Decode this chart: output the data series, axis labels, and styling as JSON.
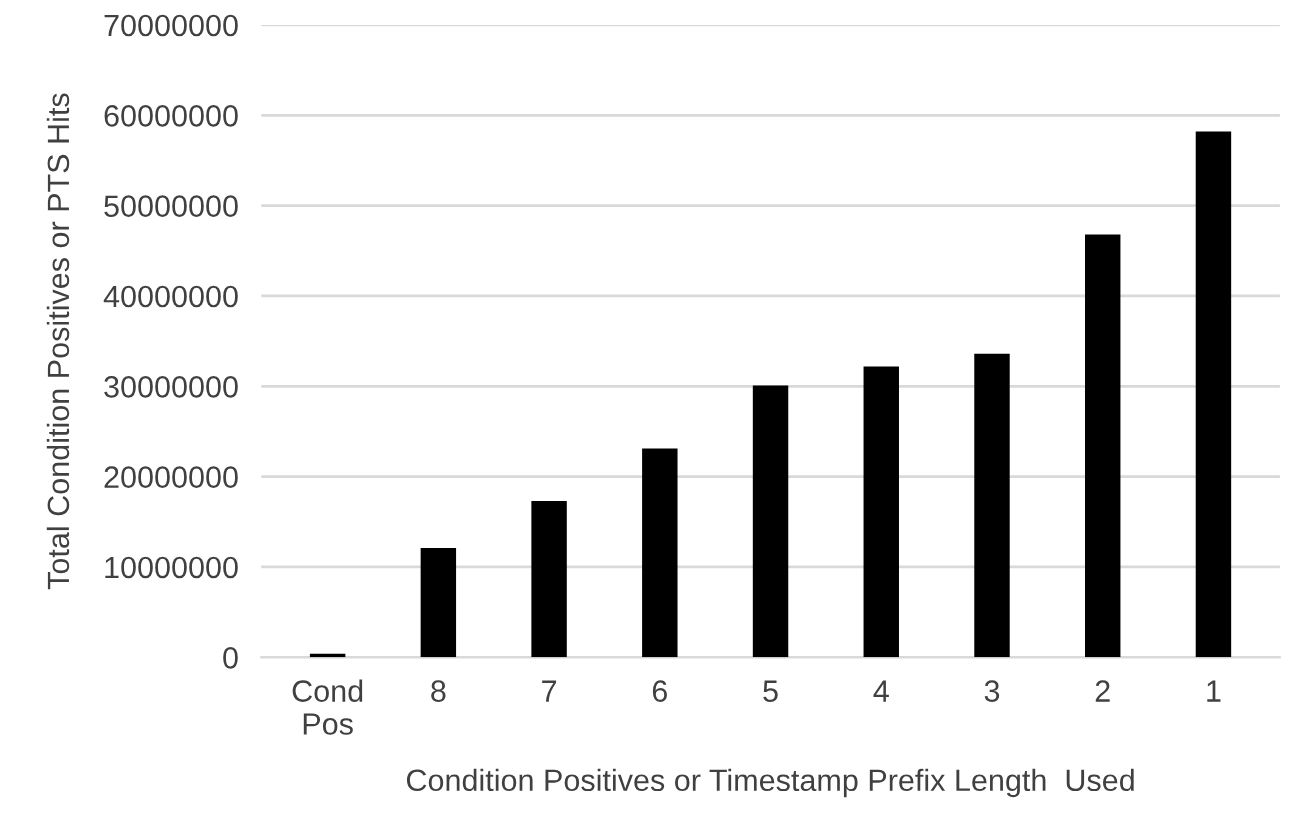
{
  "chart_data": {
    "type": "bar",
    "xlabel": "Condition Positives or Timestamp Prefix Length  Used",
    "ylabel": "Total Condition Positives or PTS Hits",
    "categories": [
      "Cond\nPos",
      "8",
      "7",
      "6",
      "5",
      "4",
      "3",
      "2",
      "1"
    ],
    "values": [
      400000,
      12100000,
      17300000,
      23100000,
      30100000,
      32200000,
      33600000,
      46800000,
      58200000
    ],
    "color": "#000000",
    "ylim": [
      0,
      70000000
    ],
    "yticks": [
      0,
      10000000,
      20000000,
      30000000,
      40000000,
      50000000,
      60000000,
      70000000
    ],
    "grid": "y"
  }
}
